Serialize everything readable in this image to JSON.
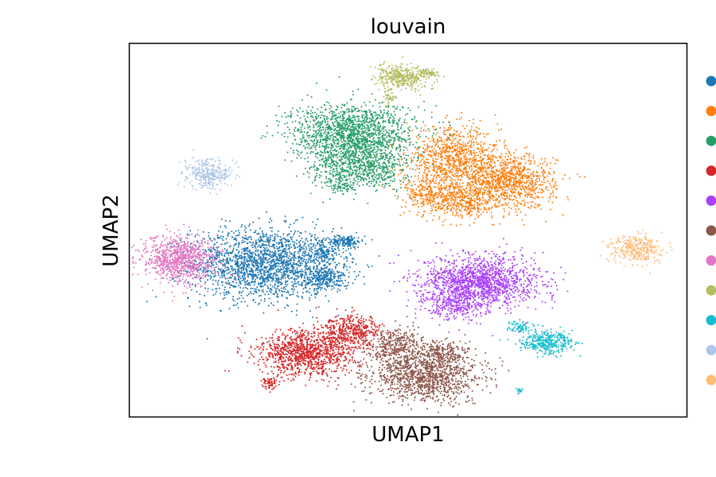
{
  "chart_data": {
    "type": "scatter",
    "title": "louvain",
    "xlabel": "UMAP1",
    "ylabel": "UMAP2",
    "xticks": [],
    "yticks": [],
    "grid": false,
    "xlim": [
      0,
      100
    ],
    "ylim": [
      0,
      100
    ],
    "legend": {
      "placement": "right, outside plot, clipped at image edge",
      "labels_visible": false
    },
    "series": [
      {
        "color": "#1f77b4",
        "clusters": [
          {
            "cx": 24,
            "cy": 41,
            "sx": 6.5,
            "sy": 4.8,
            "n": 1900
          },
          {
            "cx": 35,
            "cy": 37,
            "sx": 2.2,
            "sy": 1.6,
            "n": 260
          },
          {
            "cx": 39,
            "cy": 47,
            "sx": 1.3,
            "sy": 0.8,
            "n": 140
          },
          {
            "cx": 35,
            "cy": 44,
            "sx": 2.0,
            "sy": 2.0,
            "n": 160
          }
        ]
      },
      {
        "color": "#ff7f0e",
        "clusters": [
          {
            "cx": 58,
            "cy": 69,
            "sx": 4.2,
            "sy": 4.2,
            "n": 900
          },
          {
            "cx": 68,
            "cy": 63,
            "sx": 4.2,
            "sy": 3.6,
            "n": 1000
          },
          {
            "cx": 59,
            "cy": 58,
            "sx": 3.2,
            "sy": 2.4,
            "n": 420
          },
          {
            "cx": 53,
            "cy": 60,
            "sx": 1.8,
            "sy": 3.0,
            "n": 180
          }
        ]
      },
      {
        "color": "#279e68",
        "clusters": [
          {
            "cx": 40,
            "cy": 76,
            "sx": 5.5,
            "sy": 4.0,
            "n": 1500
          },
          {
            "cx": 39,
            "cy": 67,
            "sx": 3.4,
            "sy": 2.8,
            "n": 420
          },
          {
            "cx": 45,
            "cy": 67,
            "sx": 2.4,
            "sy": 3.0,
            "n": 260
          },
          {
            "cx": 38,
            "cy": 62,
            "sx": 1.2,
            "sy": 1.2,
            "n": 80
          }
        ]
      },
      {
        "color": "#d62728",
        "clusters": [
          {
            "cx": 32,
            "cy": 17,
            "sx": 4.6,
            "sy": 3.0,
            "n": 1100
          },
          {
            "cx": 40,
            "cy": 23,
            "sx": 2.8,
            "sy": 2.0,
            "n": 420
          },
          {
            "cx": 25,
            "cy": 9,
            "sx": 0.7,
            "sy": 0.9,
            "n": 60
          }
        ]
      },
      {
        "color": "#aa40fc",
        "clusters": [
          {
            "cx": 63,
            "cy": 36,
            "sx": 5.2,
            "sy": 3.6,
            "n": 1500
          },
          {
            "cx": 58,
            "cy": 30,
            "sx": 2.6,
            "sy": 2.0,
            "n": 240
          }
        ]
      },
      {
        "color": "#8c564b",
        "clusters": [
          {
            "cx": 53,
            "cy": 11,
            "sx": 5.0,
            "sy": 3.4,
            "n": 1200
          },
          {
            "cx": 48,
            "cy": 19,
            "sx": 2.6,
            "sy": 2.4,
            "n": 360
          },
          {
            "cx": 56,
            "cy": 17,
            "sx": 2.0,
            "sy": 1.6,
            "n": 200
          }
        ]
      },
      {
        "color": "#e377c2",
        "clusters": [
          {
            "cx": 9,
            "cy": 42,
            "sx": 3.4,
            "sy": 3.2,
            "n": 900
          }
        ]
      },
      {
        "color": "#b5bd61",
        "clusters": [
          {
            "cx": 49,
            "cy": 91,
            "sx": 2.4,
            "sy": 1.6,
            "n": 380
          },
          {
            "cx": 54,
            "cy": 92,
            "sx": 0.9,
            "sy": 0.6,
            "n": 60
          },
          {
            "cx": 46.5,
            "cy": 86,
            "sx": 0.6,
            "sy": 1.2,
            "n": 40
          }
        ]
      },
      {
        "color": "#17becf",
        "clusters": [
          {
            "cx": 75,
            "cy": 20,
            "sx": 2.4,
            "sy": 1.4,
            "n": 380
          },
          {
            "cx": 70,
            "cy": 24,
            "sx": 1.2,
            "sy": 0.8,
            "n": 70
          },
          {
            "cx": 70,
            "cy": 7,
            "sx": 0.3,
            "sy": 0.3,
            "n": 20
          }
        ]
      },
      {
        "color": "#aec7e8",
        "clusters": [
          {
            "cx": 14,
            "cy": 65,
            "sx": 2.0,
            "sy": 2.0,
            "n": 320
          }
        ]
      },
      {
        "color": "#ffbb78",
        "clusters": [
          {
            "cx": 91,
            "cy": 45,
            "sx": 2.4,
            "sy": 1.8,
            "n": 320
          }
        ]
      }
    ]
  }
}
